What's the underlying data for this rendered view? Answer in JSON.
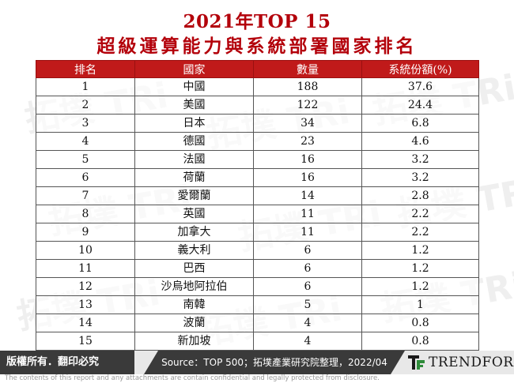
{
  "title": {
    "line1": "2021年TOP 15",
    "line2": "超級運算能力與系統部署國家排名"
  },
  "table": {
    "headers": [
      "排名",
      "國家",
      "數量",
      "系統份額(%)"
    ],
    "rows": [
      [
        "1",
        "中國",
        "188",
        "37.6"
      ],
      [
        "2",
        "美國",
        "122",
        "24.4"
      ],
      [
        "3",
        "日本",
        "34",
        "6.8"
      ],
      [
        "4",
        "德國",
        "23",
        "4.6"
      ],
      [
        "5",
        "法國",
        "16",
        "3.2"
      ],
      [
        "6",
        "荷蘭",
        "16",
        "3.2"
      ],
      [
        "7",
        "愛爾蘭",
        "14",
        "2.8"
      ],
      [
        "8",
        "英國",
        "11",
        "2.2"
      ],
      [
        "9",
        "加拿大",
        "11",
        "2.2"
      ],
      [
        "10",
        "義大利",
        "6",
        "1.2"
      ],
      [
        "11",
        "巴西",
        "6",
        "1.2"
      ],
      [
        "12",
        "沙烏地阿拉伯",
        "6",
        "1.2"
      ],
      [
        "13",
        "南韓",
        "5",
        "1"
      ],
      [
        "14",
        "波蘭",
        "4",
        "0.8"
      ],
      [
        "15",
        "新加坡",
        "4",
        "0.8"
      ]
    ]
  },
  "footer": {
    "copyright": "版權所有．翻印必究",
    "source": "Source：TOP 500；拓墣產業研究院整理，2022/04",
    "brand": "TRENDFORCE",
    "disclaimer": "The contents of this report and any attachments are contain confidential and legally protected from disclosure."
  },
  "watermark": "拓墣 TRi",
  "colors": {
    "title": "#b3000a",
    "header_bg": "#c01a1a",
    "footer_bg": "#3a3a3a"
  }
}
